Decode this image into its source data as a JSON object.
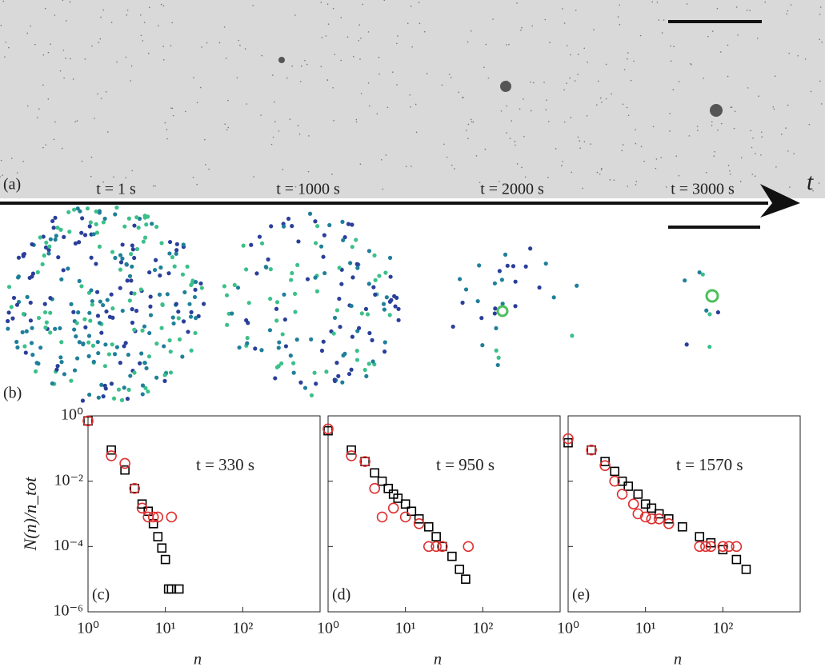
{
  "panel_a": {
    "label": "(a)"
  },
  "panel_b": {
    "label": "(b)"
  },
  "time_axis_label": "t",
  "times": [
    "t = 1 s",
    "t = 1000 s",
    "t = 2000 s",
    "t = 3000 s"
  ],
  "chart_data": [
    {
      "type": "scatter",
      "panel_label": "(c)",
      "annotation": "t = 330 s",
      "xlabel": "n",
      "ylabel": "N(n)/n_tot",
      "log_scale": true,
      "show_ytick_labels": true,
      "xlim": [
        1,
        1000
      ],
      "ylim": [
        1e-06,
        1
      ],
      "xticks": [
        {
          "value": 1,
          "label": "10⁰"
        },
        {
          "value": 10,
          "label": "10¹"
        },
        {
          "value": 100,
          "label": "10²"
        }
      ],
      "yticks": [
        {
          "value": 1e-06,
          "label": "10⁻⁶"
        },
        {
          "value": 0.0001,
          "label": "10⁻⁴"
        },
        {
          "value": 0.01,
          "label": "10⁻²"
        },
        {
          "value": 1,
          "label": "10⁰"
        }
      ],
      "series": [
        {
          "color": "#000000",
          "marker": "square",
          "x": [
            1,
            2,
            3,
            4,
            5,
            6,
            7,
            8,
            9,
            10,
            11,
            12,
            15
          ],
          "values": [
            0.7,
            0.09,
            0.022,
            0.006,
            0.002,
            0.0012,
            0.0005,
            0.0002,
            9e-05,
            4e-05,
            5e-06,
            5e-06,
            5e-06
          ]
        },
        {
          "color": "#e03030",
          "marker": "circle",
          "x": [
            1,
            2,
            3,
            4,
            5,
            6,
            7,
            8,
            12
          ],
          "values": [
            0.7,
            0.06,
            0.035,
            0.006,
            0.0015,
            0.0008,
            0.0008,
            0.0008,
            0.0008
          ]
        }
      ]
    },
    {
      "type": "scatter",
      "panel_label": "(d)",
      "annotation": "t = 950 s",
      "xlabel": "n",
      "log_scale": true,
      "show_ytick_labels": false,
      "xlim": [
        1,
        1000
      ],
      "ylim": [
        1e-06,
        1
      ],
      "xticks": [
        {
          "value": 1,
          "label": "10⁰"
        },
        {
          "value": 10,
          "label": "10¹"
        },
        {
          "value": 100,
          "label": "10²"
        }
      ],
      "yticks": [
        {
          "value": 1e-06,
          "label": "10⁻⁶"
        },
        {
          "value": 0.0001,
          "label": "10⁻⁴"
        },
        {
          "value": 0.01,
          "label": "10⁻²"
        },
        {
          "value": 1,
          "label": "10⁰"
        }
      ],
      "series": [
        {
          "color": "#000000",
          "marker": "square",
          "x": [
            1,
            2,
            3,
            4,
            5,
            6,
            7,
            8,
            10,
            12,
            15,
            20,
            25,
            30,
            40,
            50,
            60
          ],
          "values": [
            0.35,
            0.09,
            0.04,
            0.018,
            0.01,
            0.006,
            0.004,
            0.003,
            0.002,
            0.0012,
            0.0007,
            0.0004,
            0.0002,
            0.0001,
            5e-05,
            2e-05,
            1e-05
          ]
        },
        {
          "color": "#e03030",
          "marker": "circle",
          "x": [
            1,
            2,
            3,
            4,
            5,
            7,
            10,
            15,
            20,
            25,
            30,
            65
          ],
          "values": [
            0.4,
            0.06,
            0.04,
            0.006,
            0.0008,
            0.0015,
            0.0008,
            0.0005,
            0.0001,
            0.0001,
            0.0001,
            0.0001
          ]
        }
      ]
    },
    {
      "type": "scatter",
      "panel_label": "(e)",
      "annotation": "t = 1570 s",
      "xlabel": "n",
      "log_scale": true,
      "show_ytick_labels": false,
      "xlim": [
        1,
        1000
      ],
      "ylim": [
        1e-06,
        1
      ],
      "xticks": [
        {
          "value": 1,
          "label": "10⁰"
        },
        {
          "value": 10,
          "label": "10¹"
        },
        {
          "value": 100,
          "label": "10²"
        }
      ],
      "yticks": [
        {
          "value": 1e-06,
          "label": "10⁻⁶"
        },
        {
          "value": 0.0001,
          "label": "10⁻⁴"
        },
        {
          "value": 0.01,
          "label": "10⁻²"
        },
        {
          "value": 1,
          "label": "10⁰"
        }
      ],
      "series": [
        {
          "color": "#000000",
          "marker": "square",
          "x": [
            1,
            2,
            3,
            4,
            5,
            6,
            8,
            10,
            12,
            15,
            20,
            30,
            50,
            70,
            100,
            150,
            200
          ],
          "values": [
            0.15,
            0.09,
            0.04,
            0.02,
            0.01,
            0.007,
            0.004,
            0.002,
            0.0015,
            0.001,
            0.0007,
            0.0004,
            0.0002,
            0.00013,
            8e-05,
            4e-05,
            2e-05
          ]
        },
        {
          "color": "#e03030",
          "marker": "circle",
          "x": [
            1,
            2,
            3,
            4,
            5,
            7,
            8,
            10,
            12,
            15,
            20,
            50,
            60,
            70,
            100,
            120,
            150
          ],
          "values": [
            0.2,
            0.09,
            0.03,
            0.01,
            0.004,
            0.002,
            0.001,
            0.0008,
            0.0007,
            0.0007,
            0.0005,
            0.0001,
            0.0001,
            0.0001,
            0.0001,
            0.0001,
            0.0001
          ]
        }
      ]
    }
  ]
}
